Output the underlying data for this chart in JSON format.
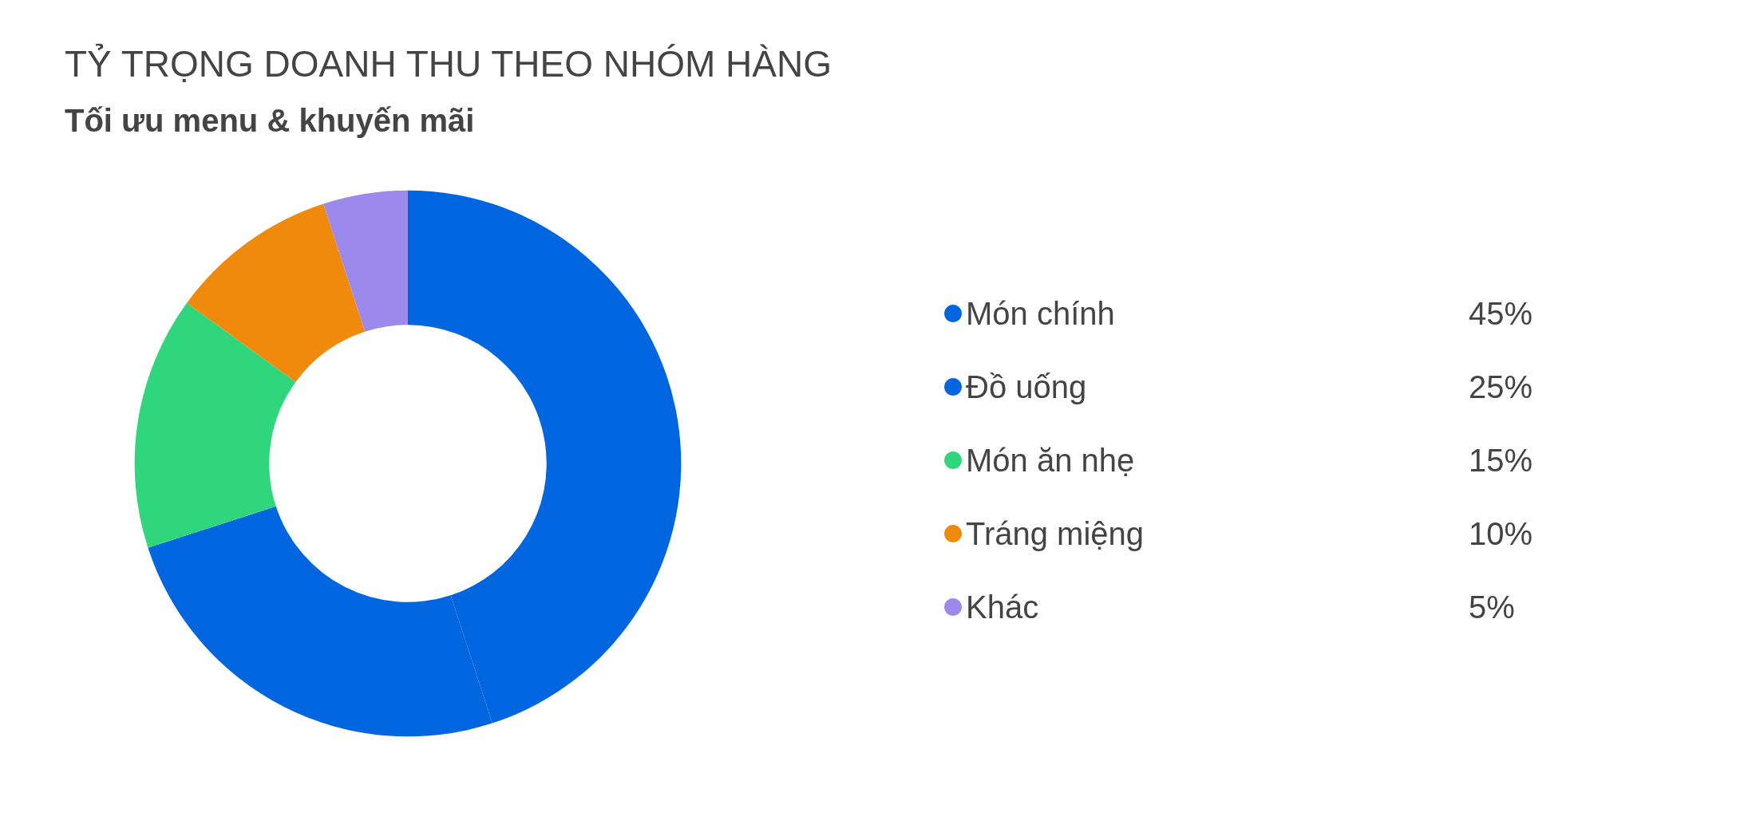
{
  "chart_data": {
    "type": "donut",
    "title": "TỶ TRỌNG DOANH THU THEO NHÓM HÀNG",
    "subtitle": "Tối ưu menu & khuyến mãi",
    "categories": [
      "Món chính",
      "Đồ uống",
      "Món ăn nhẹ",
      "Tráng miệng",
      "Khác"
    ],
    "values": [
      45,
      25,
      15,
      10,
      5
    ],
    "value_labels": [
      "45%",
      "25%",
      "15%",
      "10%",
      "5%"
    ],
    "colors": [
      "#0066e0",
      "#0066e0",
      "#2fd67b",
      "#ef8a0c",
      "#9b8aeb"
    ],
    "legend": "right"
  }
}
